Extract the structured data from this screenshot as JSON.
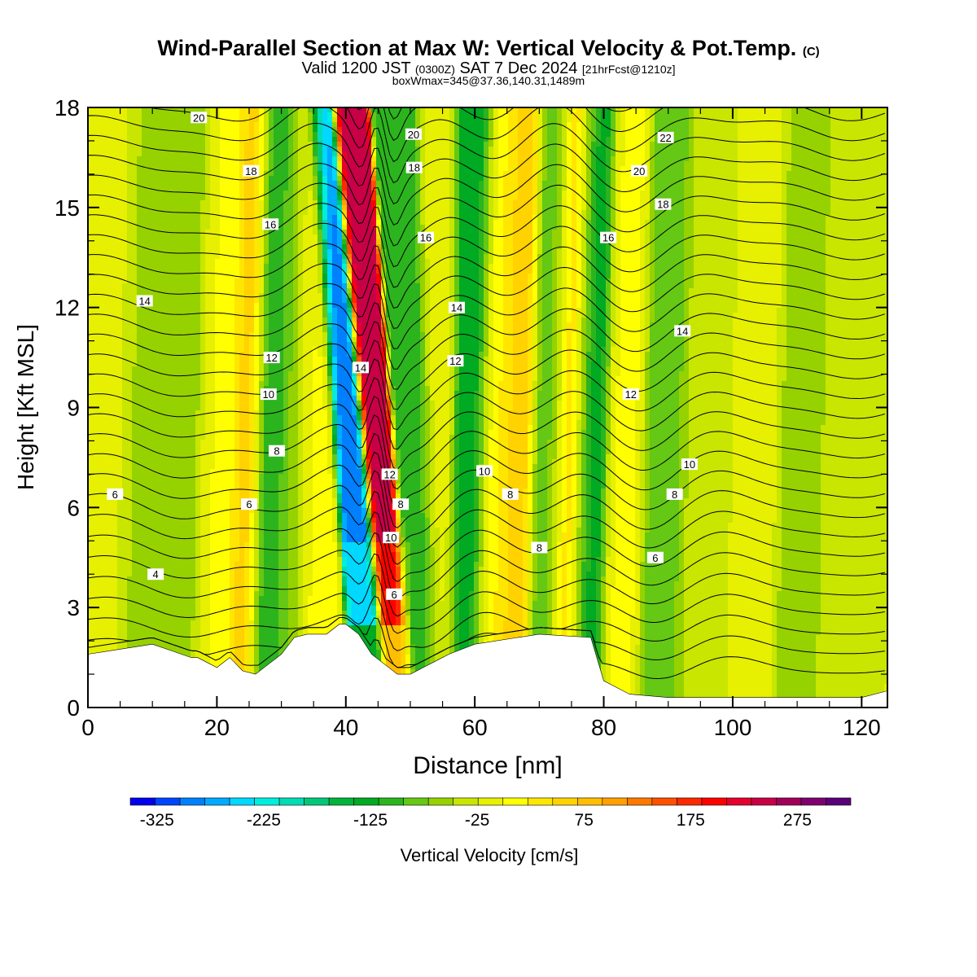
{
  "header": {
    "title": "Wind-Parallel Section at Max W: Vertical Velocity & Pot.Temp.",
    "title_suffix": "(C)",
    "valid_prefix": "Valid 1200 JST",
    "valid_utc": "(0300Z)",
    "valid_date": "SAT 7 Dec 2024",
    "forecast": "[21hrFcst@1210z]",
    "box_info": "boxWmax=345@37.36,140.31,1489m"
  },
  "chart_data": {
    "type": "heatmap",
    "xlabel": "Distance [nm]",
    "ylabel": "Height [Kft MSL]",
    "xlim": [
      0,
      124
    ],
    "ylim": [
      0,
      18
    ],
    "x_ticks": [
      0,
      20,
      40,
      60,
      80,
      100,
      120
    ],
    "y_ticks": [
      0,
      3,
      6,
      9,
      12,
      15,
      18
    ],
    "colorbar": {
      "label": "Vertical Velocity [cm/s]",
      "range": [
        -350,
        325
      ],
      "step": 25,
      "tick_labels": [
        -325,
        -225,
        -125,
        -25,
        75,
        175,
        275
      ],
      "colors": [
        "#0000ee",
        "#0044ff",
        "#0080ff",
        "#00aaff",
        "#00d8ff",
        "#00eedd",
        "#00dcb4",
        "#00c878",
        "#00b43c",
        "#00aa22",
        "#2cb41e",
        "#64c814",
        "#96d200",
        "#c8e600",
        "#e6f000",
        "#ffff00",
        "#ffe600",
        "#ffd200",
        "#ffbe00",
        "#ffa000",
        "#ff7800",
        "#ff5000",
        "#ff2800",
        "#ff0000",
        "#e6002d",
        "#c80046",
        "#a0005a",
        "#800070",
        "#5a0078"
      ]
    },
    "vertical_velocity_bands": [
      {
        "x": 4.5,
        "value": 10
      },
      {
        "x": 7.5,
        "value": -40
      },
      {
        "x": 14,
        "value": -30
      },
      {
        "x": 21,
        "value": 25
      },
      {
        "x": 24.5,
        "value": 100
      },
      {
        "x": 28,
        "value": -120
      },
      {
        "x": 31,
        "value": -45
      },
      {
        "x": 36,
        "value": 30
      },
      {
        "x": 43,
        "value": -300
      },
      {
        "x": 47,
        "value": 300
      },
      {
        "x": 52,
        "value": -100
      },
      {
        "x": 55,
        "value": 20
      },
      {
        "x": 59,
        "value": -120
      },
      {
        "x": 63,
        "value": 40
      },
      {
        "x": 66,
        "value": 90
      },
      {
        "x": 71.5,
        "value": -70
      },
      {
        "x": 74.5,
        "value": 100
      },
      {
        "x": 77.5,
        "value": -120
      },
      {
        "x": 83,
        "value": 30
      },
      {
        "x": 89,
        "value": -60
      },
      {
        "x": 95,
        "value": -20
      },
      {
        "x": 104,
        "value": 10
      },
      {
        "x": 110,
        "value": -35
      },
      {
        "x": 118,
        "value": 0
      }
    ],
    "terrain": {
      "x": [
        0,
        10,
        13,
        16,
        17,
        20,
        22,
        24,
        26,
        28,
        30,
        32,
        34,
        37,
        39,
        40,
        42,
        44,
        46,
        48,
        50,
        52,
        54,
        56,
        60,
        70,
        78,
        80,
        84,
        90,
        110,
        120,
        124
      ],
      "height": [
        1.6,
        1.9,
        1.7,
        1.5,
        1.5,
        1.2,
        1.5,
        1.1,
        1.0,
        1.3,
        1.6,
        2.1,
        2.2,
        2.2,
        2.5,
        2.5,
        2.2,
        1.6,
        1.3,
        1.0,
        1.0,
        1.2,
        1.4,
        1.6,
        1.9,
        2.2,
        2.1,
        0.8,
        0.4,
        0.3,
        0.3,
        0.3,
        0.5
      ]
    },
    "theta_contours": [
      {
        "value": 4,
        "label_x": 10.5,
        "label_y": 4.0
      },
      {
        "value": 6,
        "label_x": 4.2,
        "label_y": 6.4
      },
      {
        "value": 6,
        "label_x": 25,
        "label_y": 6.1
      },
      {
        "value": 6,
        "label_x": 47.5,
        "label_y": 3.4
      },
      {
        "value": 6,
        "label_x": 88,
        "label_y": 4.5
      },
      {
        "value": 8,
        "label_x": 29.3,
        "label_y": 7.7
      },
      {
        "value": 8,
        "label_x": 48.5,
        "label_y": 6.1
      },
      {
        "value": 8,
        "label_x": 65.5,
        "label_y": 6.4
      },
      {
        "value": 8,
        "label_x": 70,
        "label_y": 4.8
      },
      {
        "value": 8,
        "label_x": 91,
        "label_y": 6.4
      },
      {
        "value": 10,
        "label_x": 28,
        "label_y": 9.4
      },
      {
        "value": 10,
        "label_x": 47,
        "label_y": 5.1
      },
      {
        "value": 10,
        "label_x": 61.5,
        "label_y": 7.1
      },
      {
        "value": 10,
        "label_x": 93.3,
        "label_y": 7.3
      },
      {
        "value": 12,
        "label_x": 28.5,
        "label_y": 10.5
      },
      {
        "value": 12,
        "label_x": 46.8,
        "label_y": 7.0
      },
      {
        "value": 12,
        "label_x": 57,
        "label_y": 10.4
      },
      {
        "value": 12,
        "label_x": 84.2,
        "label_y": 9.4
      },
      {
        "value": 14,
        "label_x": 8.8,
        "label_y": 12.2
      },
      {
        "value": 14,
        "label_x": 42.3,
        "label_y": 10.2
      },
      {
        "value": 14,
        "label_x": 57.2,
        "label_y": 12.0
      },
      {
        "value": 14,
        "label_x": 92.2,
        "label_y": 11.3
      },
      {
        "value": 16,
        "label_x": 28.3,
        "label_y": 14.5
      },
      {
        "value": 16,
        "label_x": 52.4,
        "label_y": 14.1
      },
      {
        "value": 16,
        "label_x": 80.7,
        "label_y": 14.1
      },
      {
        "value": 18,
        "label_x": 25.3,
        "label_y": 16.1
      },
      {
        "value": 18,
        "label_x": 50.6,
        "label_y": 16.2
      },
      {
        "value": 18,
        "label_x": 89.2,
        "label_y": 15.1
      },
      {
        "value": 20,
        "label_x": 17.2,
        "label_y": 17.7
      },
      {
        "value": 20,
        "label_x": 50.5,
        "label_y": 17.2
      },
      {
        "value": 20,
        "label_x": 85.5,
        "label_y": 16.1
      },
      {
        "value": 22,
        "label_x": 89.6,
        "label_y": 17.1
      }
    ]
  }
}
